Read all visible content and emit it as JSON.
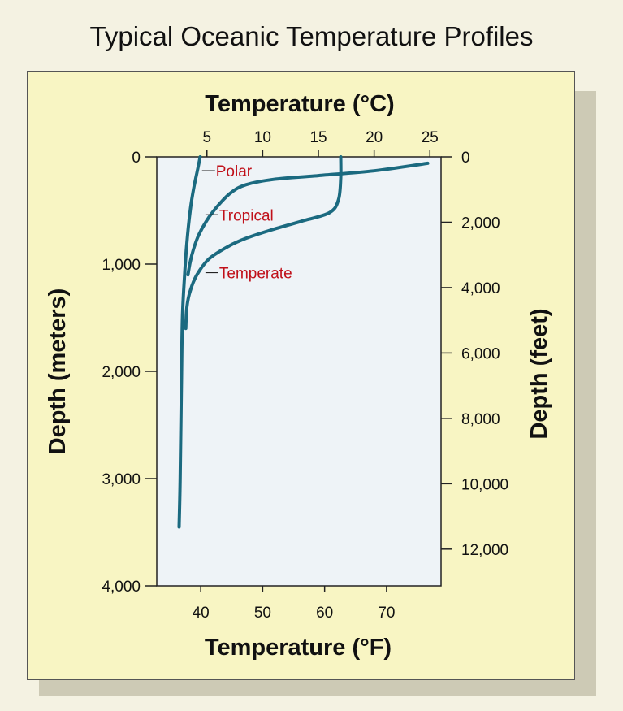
{
  "chart_data": {
    "type": "line",
    "title": "Typical Oceanic Temperature Profiles",
    "top_xlabel": "Temperature (°C)",
    "bottom_xlabel": "Temperature (°F)",
    "left_ylabel": "Depth (meters)",
    "right_ylabel": "Depth (feet)",
    "xlim_c": [
      0.5,
      26
    ],
    "ylim_m": [
      0,
      4000
    ],
    "top_ticks": [
      5,
      10,
      15,
      20,
      25
    ],
    "bottom_ticks": [
      40,
      50,
      60,
      70
    ],
    "left_ticks": [
      0,
      1000,
      2000,
      3000,
      4000
    ],
    "left_tick_labels": [
      "0",
      "1,000",
      "2,000",
      "3,000",
      "4,000"
    ],
    "right_ticks": [
      0,
      2000,
      4000,
      6000,
      8000,
      10000,
      12000
    ],
    "right_tick_labels": [
      "0",
      "2,000",
      "4,000",
      "6,000",
      "8,000",
      "10,000",
      "12,000"
    ],
    "line_color": "#1b6a80",
    "label_color": "#c0101a",
    "series": [
      {
        "name": "Polar",
        "x": [
          4.4,
          4.1,
          3.8,
          3.5,
          3.2,
          3.0,
          2.8,
          2.7,
          2.6,
          2.5
        ],
        "y": [
          0,
          150,
          300,
          500,
          800,
          1100,
          1500,
          2200,
          3000,
          3450
        ]
      },
      {
        "name": "Tropical",
        "x": [
          24.8,
          20,
          15,
          11,
          8.5,
          7.2,
          6.2,
          5.2,
          4.3,
          3.8,
          3.5,
          3.3
        ],
        "y": [
          60,
          130,
          175,
          210,
          260,
          330,
          430,
          560,
          720,
          860,
          980,
          1100
        ]
      },
      {
        "name": "Temperate",
        "x": [
          17.0,
          17.0,
          16.8,
          16.0,
          13.5,
          10.5,
          8.5,
          7.0,
          5.2,
          4.1,
          3.5,
          3.2,
          3.1
        ],
        "y": [
          0,
          200,
          400,
          520,
          600,
          690,
          760,
          830,
          950,
          1100,
          1250,
          1400,
          1600
        ]
      }
    ],
    "label_anchor": [
      {
        "x": 5.0,
        "y": 130
      },
      {
        "x": 5.3,
        "y": 540
      },
      {
        "x": 5.3,
        "y": 1080
      }
    ]
  }
}
